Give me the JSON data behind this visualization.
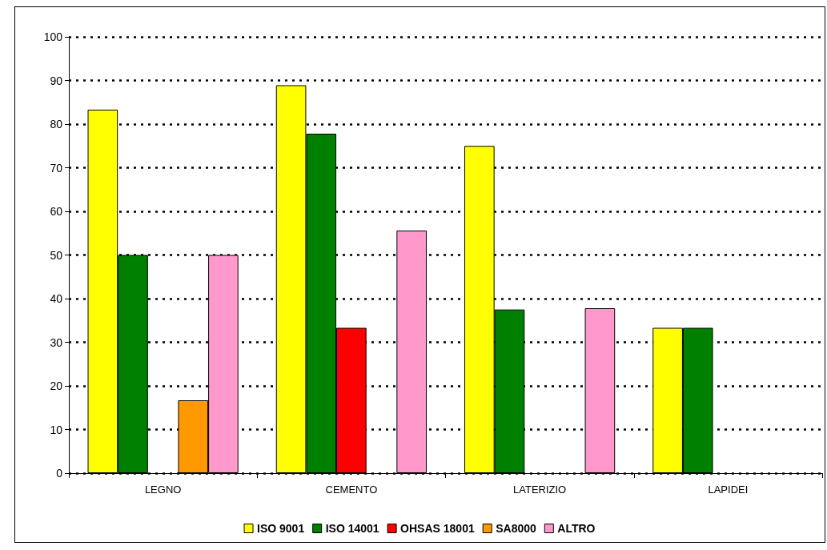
{
  "chart_data": {
    "type": "bar",
    "categories": [
      "LEGNO",
      "CEMENTO",
      "LATERIZIO",
      "LAPIDEI"
    ],
    "series": [
      {
        "name": "ISO 9001",
        "color": "#ffff00",
        "values": [
          83.3,
          88.9,
          75,
          33.3
        ]
      },
      {
        "name": "ISO 14001",
        "color": "#008000",
        "values": [
          50,
          77.8,
          37.5,
          33.3
        ]
      },
      {
        "name": "OHSAS 18001",
        "color": "#ff0000",
        "values": [
          null,
          33.3,
          null,
          null
        ]
      },
      {
        "name": "SA8000",
        "color": "#ff9900",
        "values": [
          16.7,
          null,
          null,
          null
        ]
      },
      {
        "name": "ALTRO",
        "color": "#ff99cc",
        "values": [
          50,
          55.6,
          37.8,
          null
        ]
      }
    ],
    "ylim": [
      0,
      100
    ],
    "yticks": [
      0,
      10,
      20,
      30,
      40,
      50,
      60,
      70,
      80,
      90,
      100
    ],
    "grid": "y",
    "legend": "bottom"
  }
}
